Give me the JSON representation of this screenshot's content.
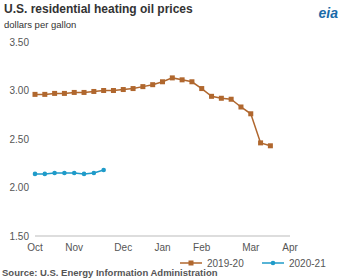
{
  "chart_data": {
    "type": "line",
    "title": "U.S. residential heating oil prices",
    "subtitle": "dollars per gallon",
    "source": "Source: U.S. Energy Information Administration",
    "logo": "eia",
    "categories": [
      "Oct",
      null,
      null,
      null,
      "Nov",
      null,
      null,
      null,
      null,
      "Dec",
      null,
      null,
      null,
      "Jan",
      null,
      null,
      null,
      "Feb",
      null,
      null,
      null,
      null,
      "Mar",
      null,
      null,
      null,
      "Apr"
    ],
    "series": [
      {
        "name": "2019-20",
        "color": "#b0672e",
        "marker": "square",
        "values": [
          2.96,
          2.96,
          2.97,
          2.97,
          2.98,
          2.98,
          2.99,
          3.0,
          3.0,
          3.01,
          3.02,
          3.04,
          3.06,
          3.09,
          3.13,
          3.11,
          3.09,
          3.02,
          2.94,
          2.92,
          2.91,
          2.83,
          2.76,
          2.46,
          2.43,
          null,
          null
        ]
      },
      {
        "name": "2020-21",
        "color": "#1f9bc9",
        "marker": "circle",
        "values": [
          2.14,
          2.14,
          2.15,
          2.15,
          2.15,
          2.14,
          2.15,
          2.18,
          null,
          null,
          null,
          null,
          null,
          null,
          null,
          null,
          null,
          null,
          null,
          null,
          null,
          null,
          null,
          null,
          null,
          null,
          null
        ]
      }
    ],
    "ylim": [
      1.5,
      3.5
    ],
    "yticks": [
      {
        "value": 1.5,
        "label": "1.50"
      },
      {
        "value": 2.0,
        "label": "2.00"
      },
      {
        "value": 2.5,
        "label": "2.50"
      },
      {
        "value": 3.0,
        "label": "3.00"
      },
      {
        "value": 3.5,
        "label": "3.50"
      }
    ],
    "grid": false,
    "legend": "bottom"
  }
}
